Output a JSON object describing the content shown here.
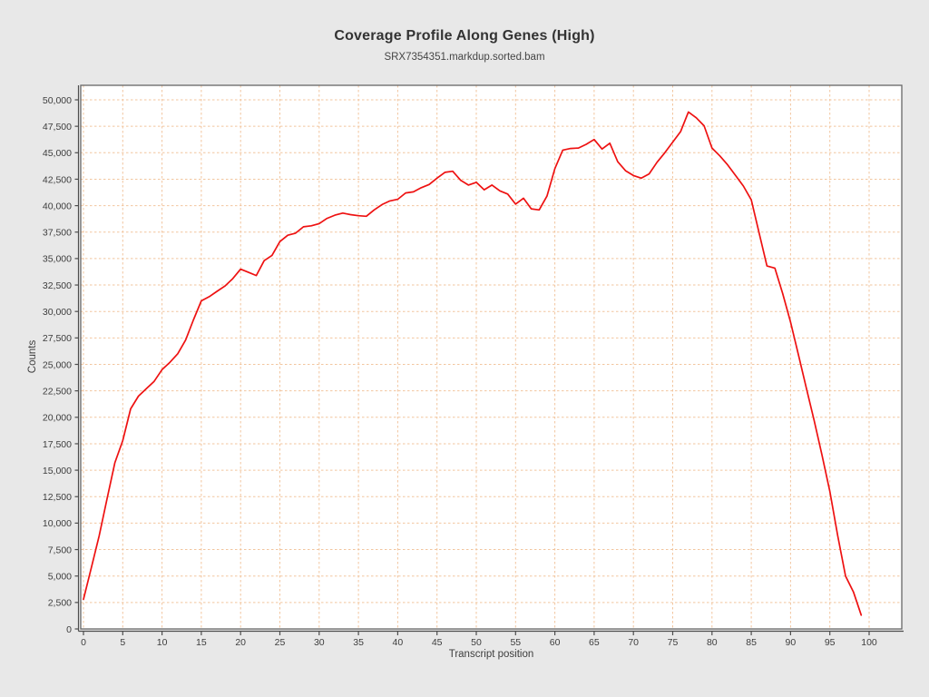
{
  "header": {
    "title": "Coverage Profile Along Genes (High)",
    "subtitle": "SRX7354351.markdup.sorted.bam"
  },
  "colors": {
    "background": "#e8e8e8",
    "plot_background": "#ffffff",
    "plot_border": "#666666",
    "axis_line": "#4d4d4d",
    "tick_mark": "#4d4d4d",
    "gridline": "#f2c59e",
    "line": "#ee1111",
    "text": "#3d3d3d"
  },
  "chart_data": {
    "type": "line",
    "title": "Coverage Profile Along Genes (High)",
    "subtitle": "SRX7354351.markdup.sorted.bam",
    "xlabel": "Transcript position",
    "ylabel": "Counts",
    "grid": "dashed",
    "legend_position": "none",
    "xlim": [
      -0.35,
      104.2
    ],
    "ylim": [
      0,
      51350
    ],
    "x_ticks": {
      "values": [
        0,
        5,
        10,
        15,
        20,
        25,
        30,
        35,
        40,
        45,
        50,
        55,
        60,
        65,
        70,
        75,
        80,
        85,
        90,
        95,
        100
      ],
      "labels": [
        "0",
        "5",
        "10",
        "15",
        "20",
        "25",
        "30",
        "35",
        "40",
        "45",
        "50",
        "55",
        "60",
        "65",
        "70",
        "75",
        "80",
        "85",
        "90",
        "95",
        "100"
      ]
    },
    "y_ticks": {
      "values": [
        0,
        2500,
        5000,
        7500,
        10000,
        12500,
        15000,
        17500,
        20000,
        22500,
        25000,
        27500,
        30000,
        32500,
        35000,
        37500,
        40000,
        42500,
        45000,
        47500,
        50000
      ],
      "labels": [
        "0",
        "2,500",
        "5,000",
        "7,500",
        "10,000",
        "12,500",
        "15,000",
        "17,500",
        "20,000",
        "22,500",
        "25,000",
        "27,500",
        "30,000",
        "32,500",
        "35,000",
        "37,500",
        "40,000",
        "42,500",
        "45,000",
        "47,500",
        "50,000"
      ]
    },
    "x": [
      0,
      1,
      2,
      3,
      4,
      5,
      6,
      7,
      8,
      9,
      10,
      11,
      12,
      13,
      14,
      15,
      16,
      17,
      18,
      19,
      20,
      21,
      22,
      23,
      24,
      25,
      26,
      27,
      28,
      29,
      30,
      31,
      32,
      33,
      34,
      35,
      36,
      37,
      38,
      39,
      40,
      41,
      42,
      43,
      44,
      45,
      46,
      47,
      48,
      49,
      50,
      51,
      52,
      53,
      54,
      55,
      56,
      57,
      58,
      59,
      60,
      61,
      62,
      63,
      64,
      65,
      66,
      67,
      68,
      69,
      70,
      71,
      72,
      73,
      74,
      75,
      76,
      77,
      78,
      79,
      80,
      81,
      82,
      83,
      84,
      85,
      86,
      87,
      88,
      89,
      90,
      91,
      92,
      93,
      94,
      95,
      96,
      97,
      98,
      99
    ],
    "series": [
      {
        "name": "SRX7354351.markdup.sorted.bam",
        "color": "#ee1111",
        "values": [
          2800,
          5800,
          8800,
          12300,
          15700,
          17800,
          20800,
          22000,
          22700,
          23400,
          24500,
          25200,
          26000,
          27300,
          29200,
          31000,
          31400,
          31900,
          32400,
          33100,
          34000,
          33700,
          33400,
          34800,
          35300,
          36600,
          37200,
          37400,
          38000,
          38100,
          38300,
          38800,
          39100,
          39300,
          39150,
          39050,
          39000,
          39600,
          40100,
          40450,
          40600,
          41200,
          41300,
          41700,
          42000,
          42600,
          43150,
          43250,
          42400,
          41950,
          42200,
          41500,
          41950,
          41400,
          41100,
          40150,
          40700,
          39700,
          39600,
          40900,
          43500,
          45250,
          45400,
          45450,
          45800,
          46250,
          45350,
          45900,
          44150,
          43300,
          42850,
          42600,
          43000,
          44100,
          45000,
          46000,
          47000,
          48850,
          48300,
          47550,
          45450,
          44700,
          43850,
          42850,
          41850,
          40550,
          37400,
          34300,
          34100,
          31700,
          29000,
          25900,
          22800,
          19700,
          16450,
          13000,
          8800,
          5000,
          3500,
          1300
        ]
      }
    ]
  }
}
